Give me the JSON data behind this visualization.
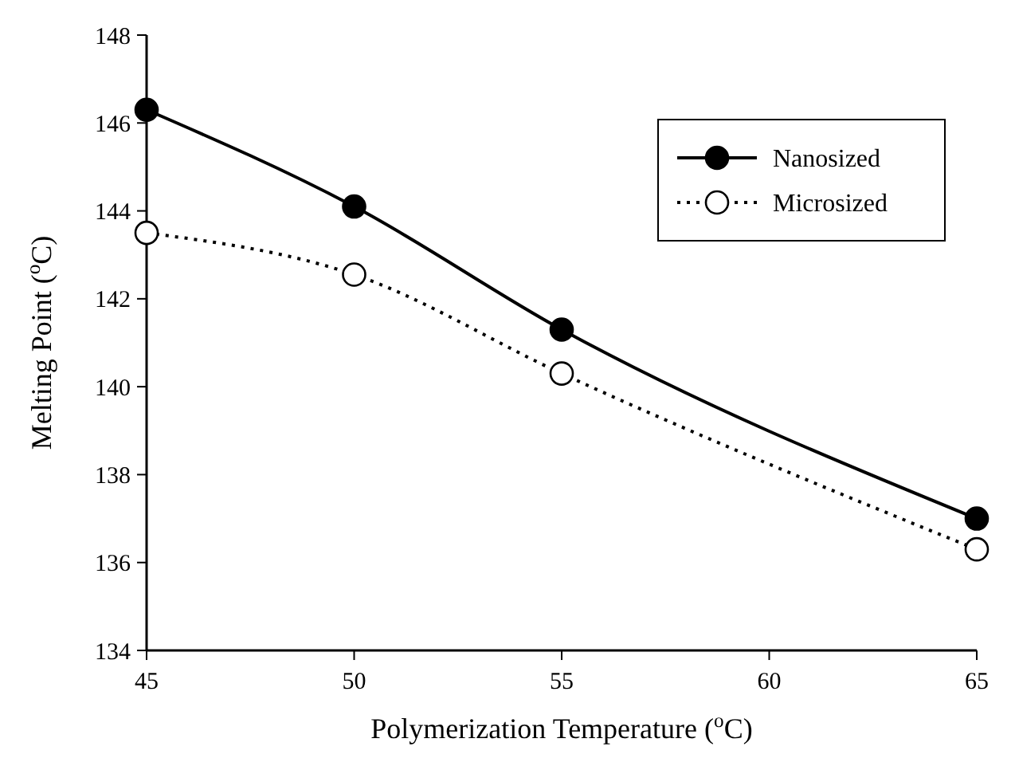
{
  "chart_data": {
    "type": "line",
    "xlabel": "Polymerization Temperature ($^{o}$C)",
    "ylabel": "Melting Point ($^{o}$C)",
    "x": [
      45,
      50,
      55,
      65
    ],
    "series": [
      {
        "name": "Nanosized",
        "color": "#000000",
        "line_style": "solid",
        "values": [
          146.3,
          144.1,
          141.3,
          137.0
        ]
      },
      {
        "name": "Microsized",
        "color": "#000000",
        "line_style": "dotted",
        "values": [
          143.5,
          142.55,
          140.3,
          136.3
        ]
      }
    ],
    "xlim": [
      45,
      65
    ],
    "xticks": [
      45,
      50,
      55,
      60,
      65
    ],
    "ylim": [
      134,
      148
    ],
    "yticks": [
      134,
      136,
      138,
      140,
      142,
      144,
      146,
      148
    ],
    "marker": "circle",
    "legend": "top right",
    "grid": false
  }
}
